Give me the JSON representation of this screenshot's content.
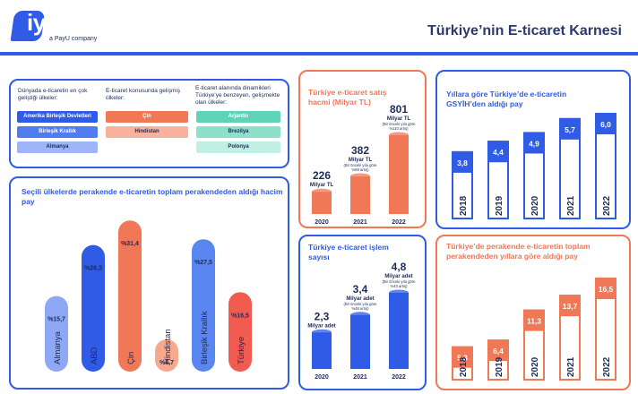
{
  "brand": {
    "logo_text": "iyzico",
    "logo_sub": "a PayU company"
  },
  "title": "Türkiye’nin E-ticaret Karnesi",
  "colors": {
    "blue": "#2f5be6",
    "orange": "#f07857",
    "navy": "#1d2b5a"
  },
  "countries_panel": {
    "col1": {
      "heading": "Dünyada e-ticaretin en çok geliştiği ülkeler:",
      "items": [
        "Amerika Birleşik Devletleri",
        "Birleşik Krallık",
        "Almanya"
      ]
    },
    "col2": {
      "heading": "E-ticaret konusunda gelişmiş ülkeler:",
      "items": [
        "Çin",
        "Hindistan"
      ]
    },
    "col3": {
      "heading": "E-ticaret alanında dinamikleri Türkiye’ye benzeyen, gelişmekte olan ülkeler:",
      "items": [
        "Arjantin",
        "Brezilya",
        "Polonya"
      ]
    }
  },
  "chart_data": [
    {
      "type": "bar",
      "title": "Seçili ülkelerde perakende e-ticaretin toplam perakendeden aldığı hacim pay",
      "categories": [
        "Almanya",
        "ABD",
        "Çin",
        "Hindistan",
        "Birleşik Krallık",
        "Türkiye"
      ],
      "values": [
        15.7,
        26.3,
        31.4,
        6.7,
        27.5,
        16.5
      ],
      "labels": [
        "%15,7",
        "%26,3",
        "%31,4",
        "%6,7",
        "%27,5",
        "%16,5"
      ]
    },
    {
      "type": "bar",
      "title": "Türkiye e-ticaret satış hacmi (Milyar TL)",
      "categories": [
        "2020",
        "2021",
        "2022"
      ],
      "values": [
        226,
        382,
        801
      ],
      "labels": [
        "226",
        "382",
        "801"
      ],
      "units": [
        "Milyar TL",
        "Milyar TL",
        "Milyar TL"
      ],
      "notes": [
        "",
        "(Bir önceki yıla göre %69 artış)",
        "(Bir önceki yıla göre %110 artış)"
      ]
    },
    {
      "type": "bar",
      "title": "Türkiye e-ticaret işlem sayısı",
      "categories": [
        "2020",
        "2021",
        "2022"
      ],
      "values": [
        2.3,
        3.4,
        4.8
      ],
      "labels": [
        "2,3",
        "3,4",
        "4,8"
      ],
      "units": [
        "Milyar adet",
        "Milyar adet",
        "Milyar adet"
      ],
      "notes": [
        "",
        "(Bir önceki yıla göre %46 artış)",
        "(Bir önceki yıla göre %43 artış)"
      ]
    },
    {
      "type": "bar",
      "title": "Yıllara göre Türkiye’de e-ticaretin GSYİH’den aldığı pay",
      "categories": [
        "2018",
        "2019",
        "2020",
        "2021",
        "2022"
      ],
      "values": [
        3.8,
        4.4,
        4.9,
        5.7,
        6.0
      ],
      "labels": [
        "3,8",
        "4,4",
        "4,9",
        "5,7",
        "6,0"
      ]
    },
    {
      "type": "bar",
      "title": "Türkiye’de perakende e-ticaretin toplam perakendeden yıllara göre aldığı pay",
      "categories": [
        "2018",
        "2019",
        "2020",
        "2021",
        "2022"
      ],
      "values": [
        5.3,
        6.4,
        11.3,
        13.7,
        16.5
      ],
      "labels": [
        "5,3",
        "6,4",
        "11,3",
        "13,7",
        "16,5"
      ]
    }
  ]
}
